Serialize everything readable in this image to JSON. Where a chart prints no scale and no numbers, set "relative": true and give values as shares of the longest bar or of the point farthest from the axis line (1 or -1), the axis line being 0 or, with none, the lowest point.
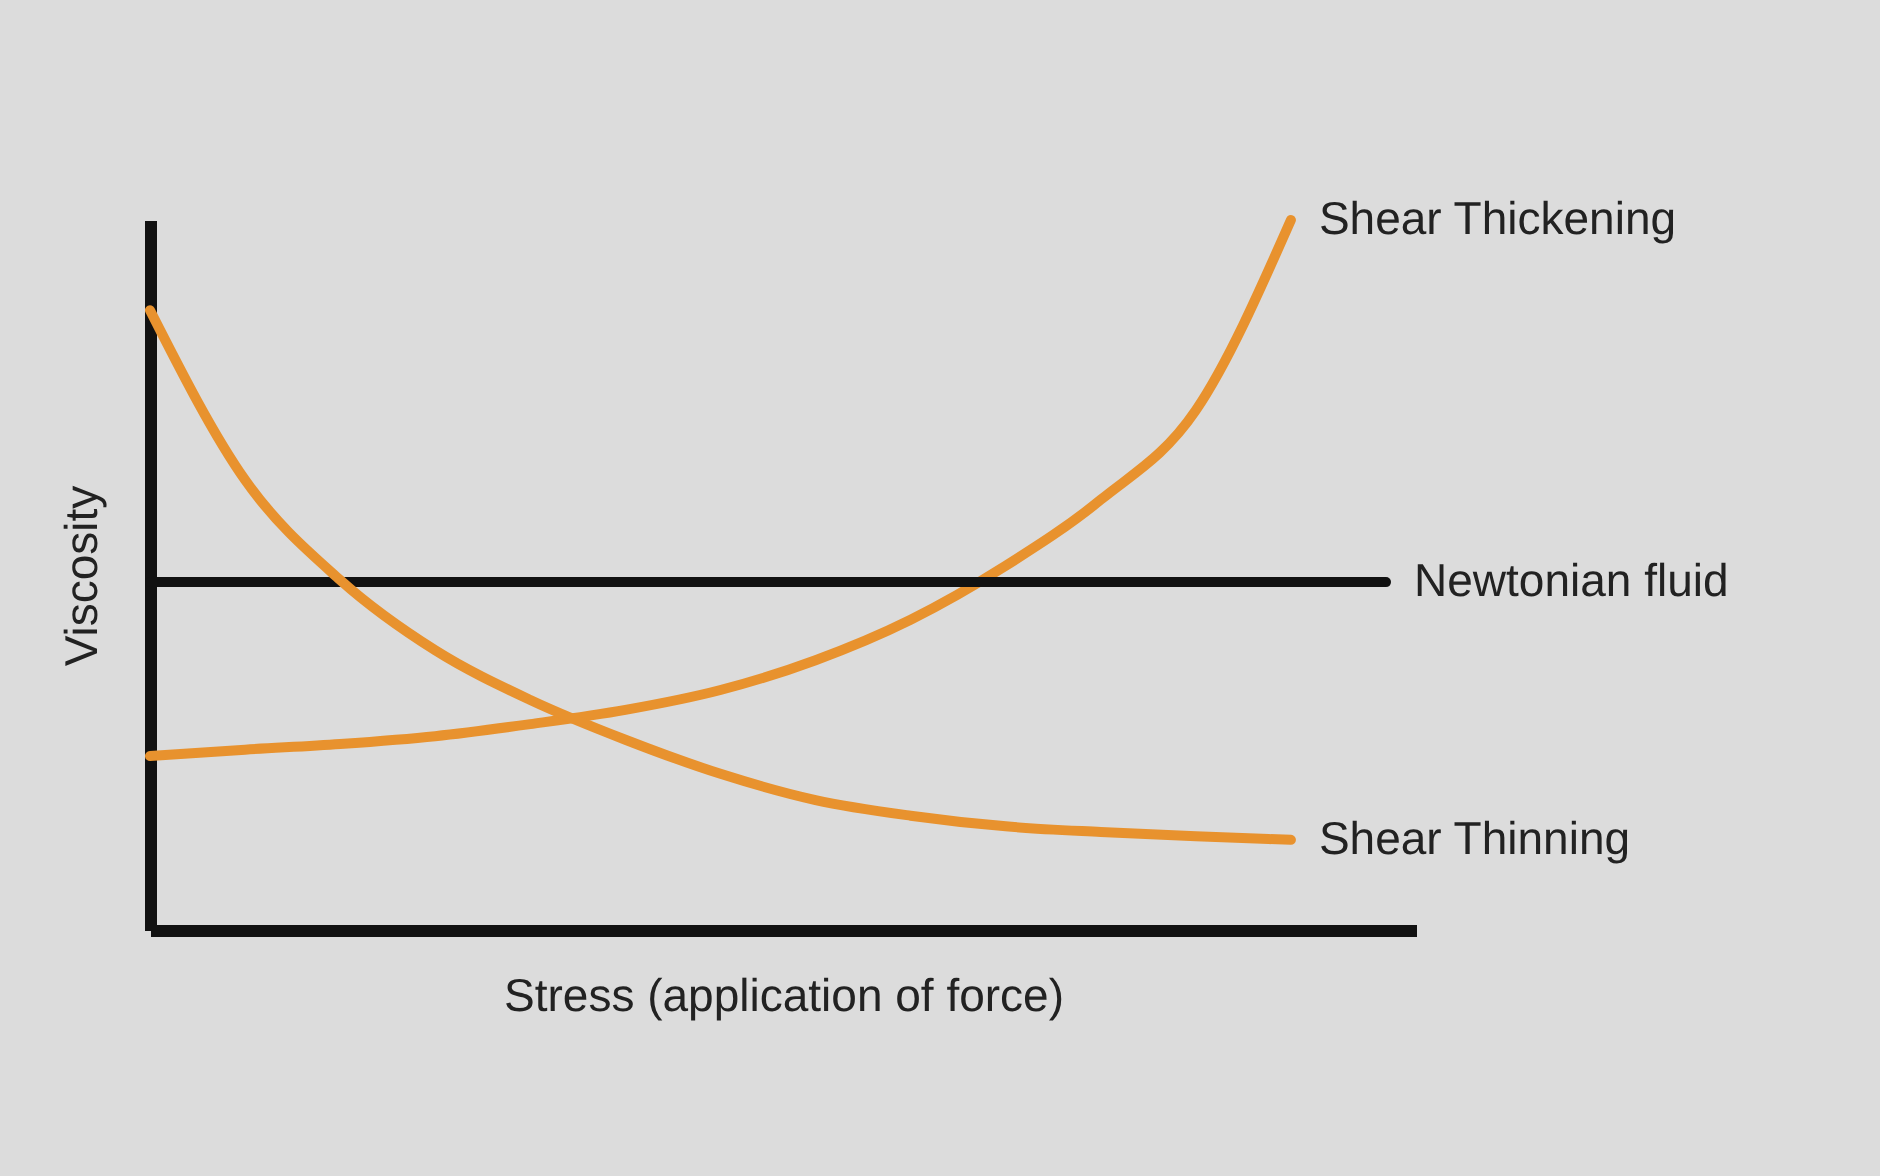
{
  "chart_data": {
    "type": "line",
    "relative": true,
    "xlabel": "Stress (application of force)",
    "ylabel": "Viscosity",
    "categories": [
      null,
      null,
      null,
      null,
      null,
      null,
      null,
      null,
      null,
      null,
      null,
      null,
      null,
      null
    ],
    "legend": false,
    "line_style": "solid",
    "marker": "none",
    "series": [
      {
        "name": "Shear Thickening",
        "color": "#e8922e",
        "values": [
          0.245,
          0.254,
          0.262,
          0.273,
          0.29,
          0.31,
          0.338,
          0.38,
          0.437,
          0.513,
          0.606,
          0.732,
          1.0,
          null
        ]
      },
      {
        "name": "Newtonian fluid",
        "color": "#111111",
        "values": [
          0.49,
          0.49,
          0.49,
          0.49,
          0.49,
          0.49,
          0.49,
          0.49,
          0.49,
          0.49,
          0.49,
          0.49,
          0.49,
          0.49
        ]
      },
      {
        "name": "Shear Thinning",
        "color": "#e8922e",
        "values": [
          0.873,
          0.634,
          0.493,
          0.394,
          0.324,
          0.268,
          0.22,
          0.183,
          0.161,
          0.146,
          0.138,
          0.132,
          0.127,
          null
        ]
      }
    ]
  }
}
